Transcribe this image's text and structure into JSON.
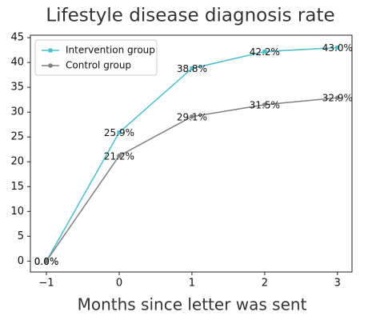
{
  "chart_data": {
    "type": "line",
    "title": "Lifestyle disease diagnosis rate",
    "x_label": "Months since letter was sent",
    "x": [
      -1,
      0,
      1,
      2,
      3
    ],
    "series": [
      {
        "name": "Intervention group",
        "color": "#4dbfc9",
        "marker": "square",
        "values": [
          0.0,
          25.9,
          38.8,
          42.2,
          43.0
        ],
        "value_labels": [
          "0.0%",
          "25.9%",
          "38.8%",
          "42.2%",
          "43.0%"
        ]
      },
      {
        "name": "Control group",
        "color": "#808080",
        "marker": "circle",
        "values": [
          0.0,
          21.2,
          29.1,
          31.5,
          32.9
        ],
        "value_labels": [
          "0.0%",
          "21.2%",
          "29.1%",
          "31.5%",
          "32.9%"
        ]
      }
    ],
    "xlim": [
      -1.22,
      3.2
    ],
    "xticks": [
      {
        "value": -1,
        "label": "−1"
      },
      0,
      1,
      2,
      3
    ],
    "ylim": [
      -2.2,
      45.5
    ],
    "yticks": [
      0,
      5,
      10,
      15,
      20,
      25,
      30,
      35,
      40,
      45
    ],
    "grid": false,
    "legend": "upper-left"
  }
}
